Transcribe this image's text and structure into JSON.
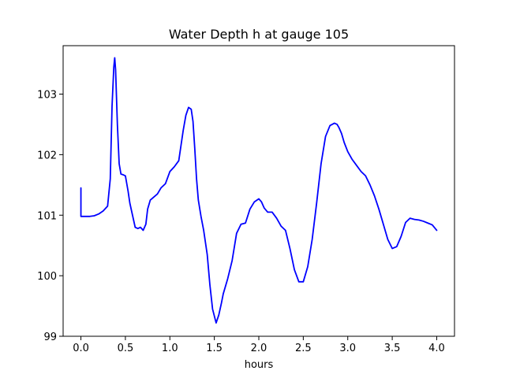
{
  "chart_data": {
    "type": "line",
    "title": "Water Depth h at gauge 105",
    "xlabel": "hours",
    "ylabel": "",
    "xlim": [
      -0.2,
      4.2
    ],
    "ylim": [
      99,
      103.8
    ],
    "xticks": [
      0.0,
      0.5,
      1.0,
      1.5,
      2.0,
      2.5,
      3.0,
      3.5,
      4.0
    ],
    "xtick_labels": [
      "0.0",
      "0.5",
      "1.0",
      "1.5",
      "2.0",
      "2.5",
      "3.0",
      "3.5",
      "4.0"
    ],
    "yticks": [
      99,
      100,
      101,
      102,
      103
    ],
    "ytick_labels": [
      "99",
      "100",
      "101",
      "102",
      "103"
    ],
    "grid": false,
    "series": [
      {
        "color": "#0000ff",
        "x": [
          0.0,
          0.0,
          0.05,
          0.1,
          0.15,
          0.2,
          0.25,
          0.3,
          0.33,
          0.35,
          0.37,
          0.38,
          0.39,
          0.41,
          0.43,
          0.45,
          0.47,
          0.5,
          0.53,
          0.55,
          0.58,
          0.61,
          0.64,
          0.67,
          0.7,
          0.73,
          0.75,
          0.78,
          0.82,
          0.86,
          0.9,
          0.95,
          1.0,
          1.05,
          1.1,
          1.15,
          1.18,
          1.21,
          1.24,
          1.26,
          1.28,
          1.3,
          1.32,
          1.35,
          1.38,
          1.42,
          1.45,
          1.48,
          1.52,
          1.55,
          1.58,
          1.6,
          1.65,
          1.7,
          1.75,
          1.8,
          1.85,
          1.9,
          1.95,
          2.0,
          2.03,
          2.06,
          2.1,
          2.15,
          2.2,
          2.25,
          2.3,
          2.35,
          2.4,
          2.45,
          2.5,
          2.55,
          2.6,
          2.65,
          2.7,
          2.75,
          2.8,
          2.85,
          2.88,
          2.9,
          2.93,
          2.96,
          3.0,
          3.05,
          3.1,
          3.15,
          3.2,
          3.25,
          3.3,
          3.35,
          3.4,
          3.45,
          3.5,
          3.55,
          3.6,
          3.65,
          3.7,
          3.75,
          3.8,
          3.85,
          3.9,
          3.95,
          4.0
        ],
        "y": [
          101.45,
          100.98,
          100.98,
          100.98,
          100.99,
          101.02,
          101.07,
          101.15,
          101.6,
          102.8,
          103.45,
          103.6,
          103.4,
          102.5,
          101.85,
          101.68,
          101.67,
          101.65,
          101.4,
          101.2,
          101.0,
          100.8,
          100.78,
          100.8,
          100.75,
          100.85,
          101.1,
          101.25,
          101.3,
          101.35,
          101.45,
          101.52,
          101.72,
          101.8,
          101.9,
          102.4,
          102.65,
          102.78,
          102.75,
          102.55,
          102.1,
          101.6,
          101.25,
          100.98,
          100.75,
          100.35,
          99.85,
          99.45,
          99.22,
          99.35,
          99.55,
          99.7,
          99.95,
          100.25,
          100.7,
          100.85,
          100.87,
          101.1,
          101.22,
          101.27,
          101.22,
          101.12,
          101.05,
          101.05,
          100.95,
          100.82,
          100.75,
          100.45,
          100.1,
          99.9,
          99.9,
          100.15,
          100.6,
          101.2,
          101.85,
          102.3,
          102.48,
          102.52,
          102.5,
          102.45,
          102.35,
          102.2,
          102.05,
          101.92,
          101.82,
          101.72,
          101.65,
          101.5,
          101.32,
          101.1,
          100.85,
          100.6,
          100.45,
          100.48,
          100.65,
          100.88,
          100.95,
          100.93,
          100.92,
          100.9,
          100.87,
          100.84,
          100.75
        ]
      }
    ]
  }
}
